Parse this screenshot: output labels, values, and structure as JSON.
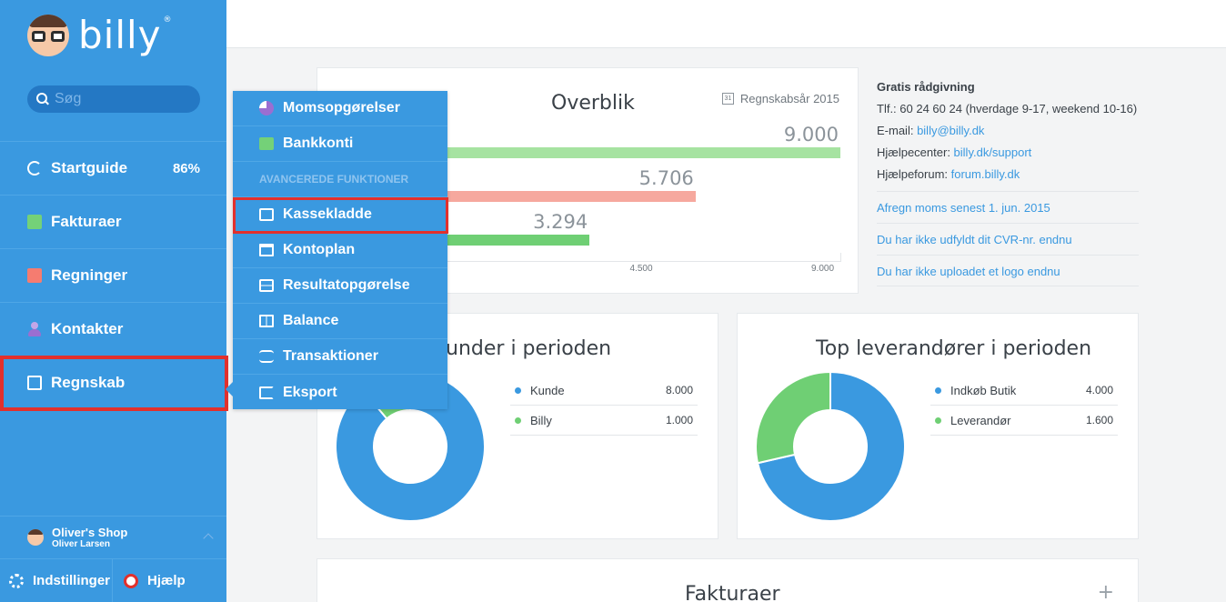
{
  "app": {
    "logo_text": "billy",
    "logo_reg": "®"
  },
  "search": {
    "placeholder": "Søg"
  },
  "sidebar": {
    "items": [
      {
        "label": "Startguide",
        "badge": "86%"
      },
      {
        "label": "Fakturaer"
      },
      {
        "label": "Regninger"
      },
      {
        "label": "Kontakter"
      },
      {
        "label": "Regnskab"
      }
    ],
    "user": {
      "shop": "Oliver's Shop",
      "name": "Oliver Larsen"
    },
    "bottom": {
      "settings": "Indstillinger",
      "help": "Hjælp"
    }
  },
  "dropdown": {
    "items": [
      {
        "label": "Momsopgørelser",
        "icon": "pie-icon"
      },
      {
        "label": "Bankkonti",
        "icon": "bank-icon"
      }
    ],
    "section": "AVANCEREDE FUNKTIONER",
    "advanced": [
      {
        "label": "Kassekladde",
        "icon": "edit-icon"
      },
      {
        "label": "Kontoplan",
        "icon": "book-icon"
      },
      {
        "label": "Resultatopgørelse",
        "icon": "layers-icon"
      },
      {
        "label": "Balance",
        "icon": "balance-icon"
      },
      {
        "label": "Transaktioner",
        "icon": "transactions-icon"
      },
      {
        "label": "Eksport",
        "icon": "export-icon"
      }
    ]
  },
  "overblik": {
    "title": "Overblik",
    "year_label": "Regnskabsår 2015",
    "calendar_day": "31"
  },
  "chart_data": [
    {
      "type": "bar",
      "orientation": "horizontal",
      "title": "Overblik",
      "categories": [
        "",
        "",
        ""
      ],
      "values": [
        9000,
        5706,
        3294
      ],
      "value_labels": [
        "9.000",
        "5.706",
        "3.294"
      ],
      "colors": [
        "#a6e3a1",
        "#f6a89e",
        "#6fcf74"
      ],
      "xticks": [
        "4.500",
        "9.000"
      ],
      "xlim": [
        0,
        9000
      ]
    },
    {
      "type": "pie",
      "style": "donut",
      "title": "Top kunder i perioden",
      "title_visible": "p kunder i perioden",
      "labels": [
        "Kunde",
        "Billy"
      ],
      "values": [
        8000,
        1000
      ],
      "value_labels": [
        "8.000",
        "1.000"
      ],
      "colors": [
        "#3a99e0",
        "#6fcf74"
      ]
    },
    {
      "type": "pie",
      "style": "donut",
      "title": "Top leverandører i perioden",
      "labels": [
        "Indkøb Butik",
        "Leverandør"
      ],
      "values": [
        4000,
        1600
      ],
      "value_labels": [
        "4.000",
        "1.600"
      ],
      "colors": [
        "#3a99e0",
        "#6fcf74"
      ]
    }
  ],
  "info": {
    "heading": "Gratis rådgivning",
    "phone": "Tlf.: 60 24 60 24 (hverdage 9-17, weekend 10-16)",
    "email_label": "E-mail: ",
    "email": "billy@billy.dk",
    "help_label": "Hjælpecenter: ",
    "help_link": "billy.dk/support",
    "forum_label": "Hjælpeforum: ",
    "forum_link": "forum.billy.dk",
    "links": [
      "Afregn moms senest 1. jun. 2015",
      "Du har ikke udfyldt dit CVR-nr. endnu",
      "Du har ikke uploadet et logo endnu"
    ]
  },
  "faktura": {
    "title": "Fakturaer",
    "plus": "+"
  }
}
